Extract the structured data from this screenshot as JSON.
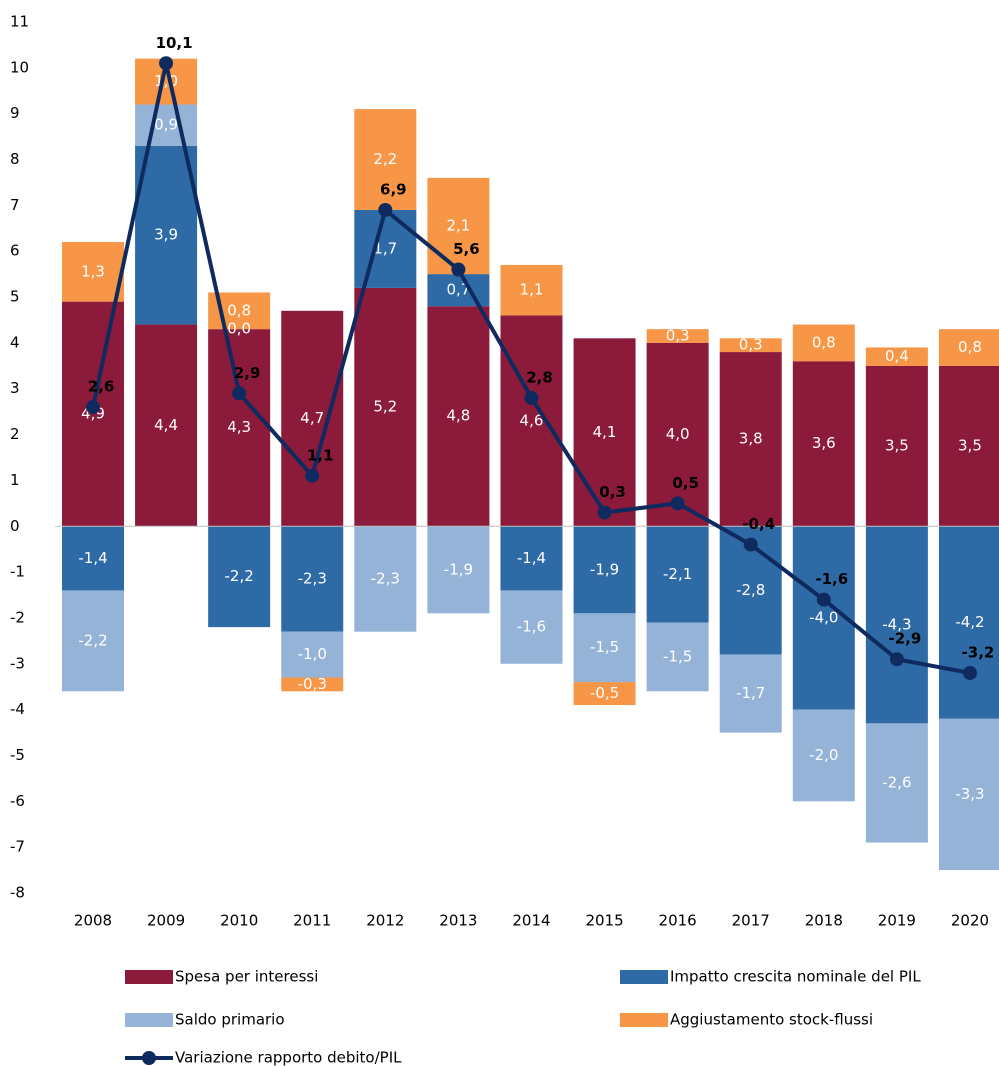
{
  "chart_data": {
    "type": "bar",
    "stacked": true,
    "categories": [
      "2008",
      "2009",
      "2010",
      "2011",
      "2012",
      "2013",
      "2014",
      "2015",
      "2016",
      "2017",
      "2018",
      "2019",
      "2020"
    ],
    "ylim": [
      -8,
      11
    ],
    "yticks": [
      -8,
      -7,
      -6,
      -5,
      -4,
      -3,
      -2,
      -1,
      0,
      1,
      2,
      3,
      4,
      5,
      6,
      7,
      8,
      9,
      10,
      11
    ],
    "grid": false,
    "legend": "bottom",
    "series": [
      {
        "name": "Spesa per interessi",
        "color": "#8c1a3b",
        "values": [
          4.9,
          4.4,
          4.3,
          4.7,
          5.2,
          4.8,
          4.6,
          4.1,
          4.0,
          3.8,
          3.6,
          3.5,
          3.5
        ],
        "value_labels": [
          "4,9",
          "4,4",
          "4,3",
          "4,7",
          "5,2",
          "4,8",
          "4,6",
          "4,1",
          "4,0",
          "3,8",
          "3,6",
          "3,5",
          "3,5"
        ]
      },
      {
        "name": "Impatto crescita nominale del PIL",
        "color": "#2e6aa6",
        "values": [
          -1.4,
          3.9,
          -2.2,
          -2.3,
          1.7,
          0.7,
          -1.4,
          -1.9,
          -2.1,
          -2.8,
          -4.0,
          -4.3,
          -4.2
        ],
        "value_labels": [
          "-1,4",
          "3,9",
          "-2,2",
          "-2,3",
          "1,7",
          "0,7",
          "-1,4",
          "-1,9",
          "-2,1",
          "-2,8",
          "-4,0",
          "-4,3",
          "-4,2"
        ]
      },
      {
        "name": "Saldo primario",
        "color": "#95b3d7",
        "values": [
          -2.2,
          0.9,
          0.0,
          -1.0,
          -2.3,
          -1.9,
          -1.6,
          -1.5,
          -1.5,
          -1.7,
          -2.0,
          -2.6,
          -3.3
        ],
        "value_labels": [
          "-2,2",
          "0,9",
          "0,0",
          "-1,0",
          "-2,3",
          "-1,9",
          "-1,6",
          "-1,5",
          "-1,5",
          "-1,7",
          "-2,0",
          "-2,6",
          "-3,3"
        ]
      },
      {
        "name": "Aggiustamento stock-flussi",
        "color": "#f79646",
        "values": [
          1.3,
          1.0,
          0.8,
          -0.3,
          2.2,
          2.1,
          1.1,
          -0.5,
          0.3,
          0.3,
          0.8,
          0.4,
          0.8
        ],
        "value_labels": [
          "1,3",
          "1,0",
          "0,8",
          "-0,3",
          "2,2",
          "2,1",
          "1,1",
          "-0,5",
          "0,3",
          "0,3",
          "0,8",
          "0,4",
          "0,8"
        ]
      },
      {
        "name": "Variazione rapporto debito/PIL",
        "type": "line",
        "color": "#0f2a5e",
        "values": [
          2.6,
          10.1,
          2.9,
          1.1,
          6.9,
          5.6,
          2.8,
          0.3,
          0.5,
          -0.4,
          -1.6,
          -2.9,
          -3.2
        ],
        "value_labels": [
          "2,6",
          "10,1",
          "2,9",
          "1,1",
          "6,9",
          "5,6",
          "2,8",
          "0,3",
          "0,5",
          "-0,4",
          "-1,6",
          "-2,9",
          "-3,2"
        ]
      }
    ]
  }
}
